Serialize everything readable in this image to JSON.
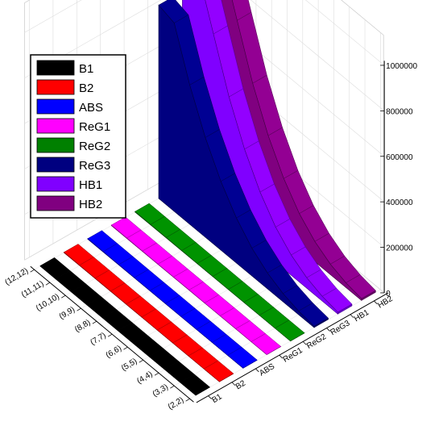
{
  "chart_data": {
    "type": "3d-ribbon",
    "title": "",
    "xlabel": "",
    "ylabel": "",
    "zlabel": "",
    "categories": [
      "(2,2)",
      "(3,3)",
      "(4,4)",
      "(5,5)",
      "(6,6)",
      "(7,7)",
      "(8,8)",
      "(9,9)",
      "(10,10)",
      "(11,11)",
      "(12,12)"
    ],
    "series_axis_labels": [
      "B1",
      "B2",
      "ABS",
      "ReG1",
      "ReG2",
      "ReG3",
      "HB1",
      "HB2"
    ],
    "z_ticks": [
      "0",
      "200000",
      "400000",
      "600000",
      "800000",
      "1000000"
    ],
    "zlim": [
      0,
      1000000
    ],
    "legend_position": "top-left",
    "series": [
      {
        "name": "B1",
        "color": "#000000",
        "values": [
          100,
          150,
          220,
          320,
          450,
          620,
          830,
          1100,
          1430,
          1850,
          2300
        ]
      },
      {
        "name": "B2",
        "color": "#ff0000",
        "values": [
          100,
          150,
          220,
          320,
          450,
          620,
          830,
          1100,
          1430,
          1850,
          2300
        ]
      },
      {
        "name": "ABS",
        "color": "#0000ff",
        "values": [
          100,
          150,
          220,
          320,
          450,
          620,
          830,
          1100,
          1430,
          1850,
          2300
        ]
      },
      {
        "name": "ReG1",
        "color": "#ff00ff",
        "values": [
          100,
          150,
          220,
          320,
          450,
          620,
          830,
          1100,
          1430,
          1850,
          2300
        ]
      },
      {
        "name": "ReG2",
        "color": "#008000",
        "values": [
          100,
          150,
          220,
          320,
          450,
          620,
          830,
          1100,
          1430,
          1850,
          2300
        ]
      },
      {
        "name": "ReG3",
        "color": "#000080",
        "values": [
          6000,
          16000,
          36000,
          70000,
          122000,
          198000,
          302000,
          438000,
          612000,
          828000,
          850000
        ]
      },
      {
        "name": "HB1",
        "color": "#8000ff",
        "values": [
          8000,
          21000,
          46000,
          89000,
          155000,
          252000,
          384000,
          557000,
          777000,
          1000000,
          1000000
        ]
      },
      {
        "name": "HB2",
        "color": "#800080",
        "values": [
          8000,
          21000,
          46000,
          89000,
          155000,
          252000,
          384000,
          557000,
          777000,
          1000000,
          1000000
        ]
      }
    ]
  }
}
